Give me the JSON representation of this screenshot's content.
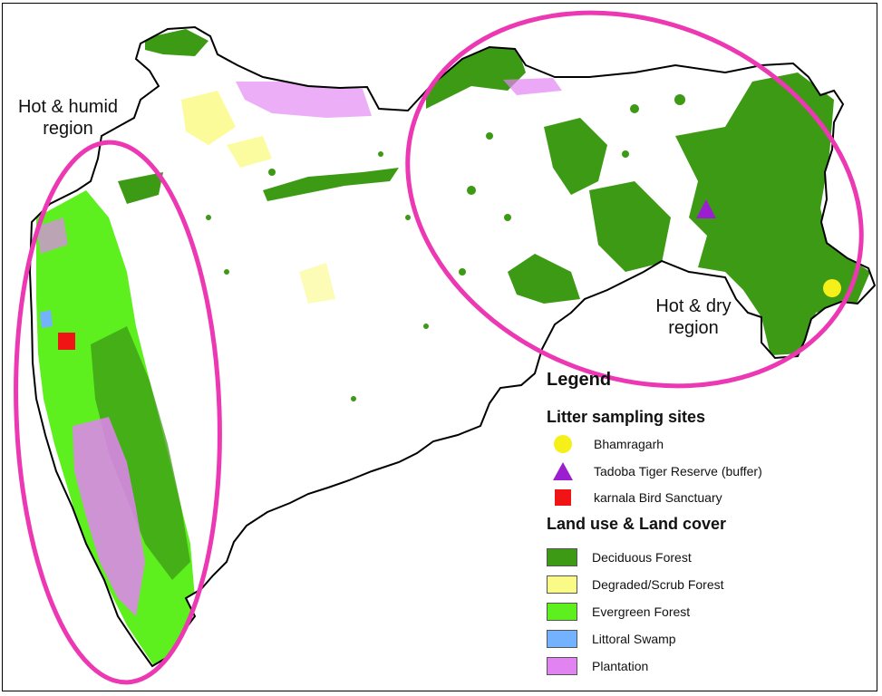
{
  "regions": {
    "humid": [
      "Hot & humid",
      "region"
    ],
    "dry": [
      "Hot & dry",
      "region"
    ]
  },
  "legend": {
    "title": "Legend",
    "sites_heading": "Litter sampling sites",
    "sites": [
      {
        "label": "Bhamragarh",
        "symbol": "circle",
        "color": "#f5ef1a"
      },
      {
        "label": "Tadoba Tiger Reserve (buffer)",
        "symbol": "triangle",
        "color": "#9b1fd0"
      },
      {
        "label": "karnala Bird Sanctuary",
        "symbol": "square",
        "color": "#f01414"
      }
    ],
    "lulc_heading": "Land use & Land cover",
    "lulc": [
      {
        "label": "Deciduous Forest",
        "color": "#3c9a14"
      },
      {
        "label": "Degraded/Scrub Forest",
        "color": "#fafa87"
      },
      {
        "label": "Evergreen Forest",
        "color": "#5ef01e"
      },
      {
        "label": "Littoral Swamp",
        "color": "#73b2ff"
      },
      {
        "label": "Plantation",
        "color": "#e283f2"
      }
    ]
  },
  "colors": {
    "ellipse": "#ec38b3",
    "outline": "#000000"
  }
}
